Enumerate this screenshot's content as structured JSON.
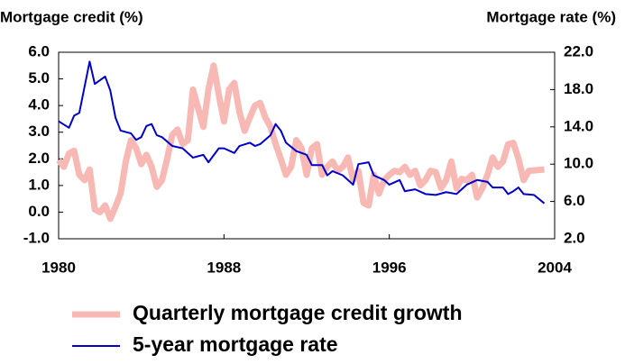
{
  "chart_data": {
    "type": "line",
    "y_label": "Mortgage credit (%)",
    "y2_label": "Mortgage rate (%)",
    "xlim": [
      1980,
      2004
    ],
    "xticks": [
      1980,
      1988,
      1996,
      2004
    ],
    "ylim": [
      -1,
      6
    ],
    "yticks": [
      {
        "value": -1,
        "label": "-1.0"
      },
      {
        "value": 0,
        "label": "0.0"
      },
      {
        "value": 1,
        "label": "1.0"
      },
      {
        "value": 2,
        "label": "2.0"
      },
      {
        "value": 3,
        "label": "3.0"
      },
      {
        "value": 4,
        "label": "4.0"
      },
      {
        "value": 5,
        "label": "5.0"
      },
      {
        "value": 6,
        "label": "6.0"
      }
    ],
    "y2lim": [
      2,
      22
    ],
    "y2ticks": [
      {
        "value": 2,
        "label": "2.0"
      },
      {
        "value": 6,
        "label": "6.0"
      },
      {
        "value": 10,
        "label": "10.0"
      },
      {
        "value": 14,
        "label": "14.0"
      },
      {
        "value": 18,
        "label": "18.0"
      },
      {
        "value": 22,
        "label": "22.0"
      }
    ],
    "series": [
      {
        "name": "Quarterly mortgage credit growth",
        "color": "#f8b8b4",
        "width": 7,
        "x": [
          1980,
          1980.25,
          1980.5,
          1980.75,
          1981,
          1981.25,
          1981.5,
          1981.75,
          1982,
          1982.25,
          1982.5,
          1982.75,
          1983,
          1983.25,
          1983.5,
          1983.75,
          1984,
          1984.25,
          1984.5,
          1984.75,
          1985,
          1985.25,
          1985.5,
          1985.75,
          1986,
          1986.25,
          1986.5,
          1986.75,
          1987,
          1987.25,
          1987.5,
          1987.75,
          1988,
          1988.25,
          1988.5,
          1988.75,
          1989,
          1989.25,
          1989.5,
          1989.75,
          1990,
          1990.25,
          1990.5,
          1990.75,
          1991,
          1991.25,
          1991.5,
          1991.75,
          1992,
          1992.25,
          1992.5,
          1992.75,
          1993,
          1993.25,
          1993.5,
          1993.75,
          1994,
          1994.25,
          1994.5,
          1994.75,
          1995,
          1995.25,
          1995.5,
          1995.75,
          1996,
          1996.25,
          1996.5,
          1996.75,
          1997,
          1997.25,
          1997.5,
          1997.75,
          1998,
          1998.25,
          1998.5,
          1998.75,
          1999,
          1999.25,
          1999.5,
          1999.75,
          2000,
          2000.25,
          2000.5,
          2000.75,
          2001,
          2001.25,
          2001.5,
          2001.75,
          2002,
          2002.25,
          2002.5,
          2002.75,
          2003.5
        ],
        "values": [
          1.95,
          1.7,
          2.2,
          2.3,
          1.4,
          1.2,
          1.6,
          0.1,
          0.0,
          0.25,
          -0.25,
          0.2,
          0.7,
          1.9,
          2.7,
          2.4,
          1.8,
          2.15,
          1.7,
          0.95,
          1.2,
          2.0,
          2.9,
          3.1,
          2.55,
          2.7,
          4.6,
          3.9,
          3.2,
          4.6,
          5.5,
          4.4,
          3.4,
          4.6,
          4.85,
          3.75,
          3.05,
          3.55,
          4.0,
          4.1,
          3.55,
          3.2,
          2.55,
          2.0,
          1.4,
          1.7,
          2.7,
          2.4,
          1.4,
          2.4,
          2.55,
          1.4,
          1.7,
          1.9,
          1.55,
          1.7,
          2.05,
          1.2,
          1.55,
          0.35,
          0.25,
          1.4,
          0.7,
          1.2,
          1.4,
          1.55,
          1.5,
          1.7,
          1.4,
          1.55,
          1.0,
          1.2,
          1.55,
          1.5,
          0.9,
          1.2,
          1.9,
          0.9,
          1.25,
          1.2,
          1.4,
          0.55,
          0.9,
          1.4,
          2.05,
          1.7,
          1.9,
          2.55,
          2.6,
          2.0,
          1.2,
          1.55,
          1.6
        ]
      },
      {
        "name": "5-year mortgage rate",
        "color": "#0000cc",
        "width": 2,
        "axis": "y2",
        "x": [
          1980,
          1980.5,
          1980.75,
          1981,
          1981.5,
          1981.75,
          1982.25,
          1982.5,
          1982.75,
          1983,
          1983.5,
          1983.75,
          1984,
          1984.25,
          1984.5,
          1984.75,
          1985,
          1985.5,
          1986,
          1986.5,
          1987,
          1987.25,
          1987.75,
          1988,
          1988.5,
          1988.75,
          1989.25,
          1989.5,
          1989.75,
          1990.25,
          1990.5,
          1990.75,
          1991,
          1991.5,
          1992,
          1992.25,
          1992.75,
          1993,
          1993.25,
          1993.75,
          1994.25,
          1994.5,
          1995,
          1995.25,
          1995.75,
          1996,
          1996.5,
          1996.75,
          1997.25,
          1997.75,
          1998.25,
          1998.75,
          1999.25,
          1999.75,
          2000.25,
          2000.75,
          2001,
          2001.5,
          2001.75,
          2002,
          2002.25,
          2002.5,
          2003,
          2003.5
        ],
        "values": [
          14.6,
          13.9,
          15.2,
          15.5,
          21.0,
          18.6,
          19.4,
          17.9,
          15.0,
          13.6,
          13.3,
          12.6,
          12.9,
          14.1,
          14.3,
          13.1,
          12.9,
          11.95,
          11.7,
          10.7,
          11.0,
          10.2,
          11.7,
          11.7,
          11.2,
          11.95,
          12.3,
          11.95,
          12.15,
          13.1,
          14.3,
          13.6,
          12.3,
          11.4,
          11.0,
          9.9,
          9.9,
          8.8,
          9.25,
          8.8,
          7.8,
          10.0,
          10.2,
          8.8,
          8.3,
          7.8,
          8.3,
          7.1,
          7.3,
          6.8,
          6.7,
          7.0,
          6.8,
          7.8,
          8.3,
          8.1,
          7.5,
          7.5,
          6.8,
          7.1,
          7.5,
          6.8,
          6.7,
          5.8
        ]
      }
    ]
  }
}
